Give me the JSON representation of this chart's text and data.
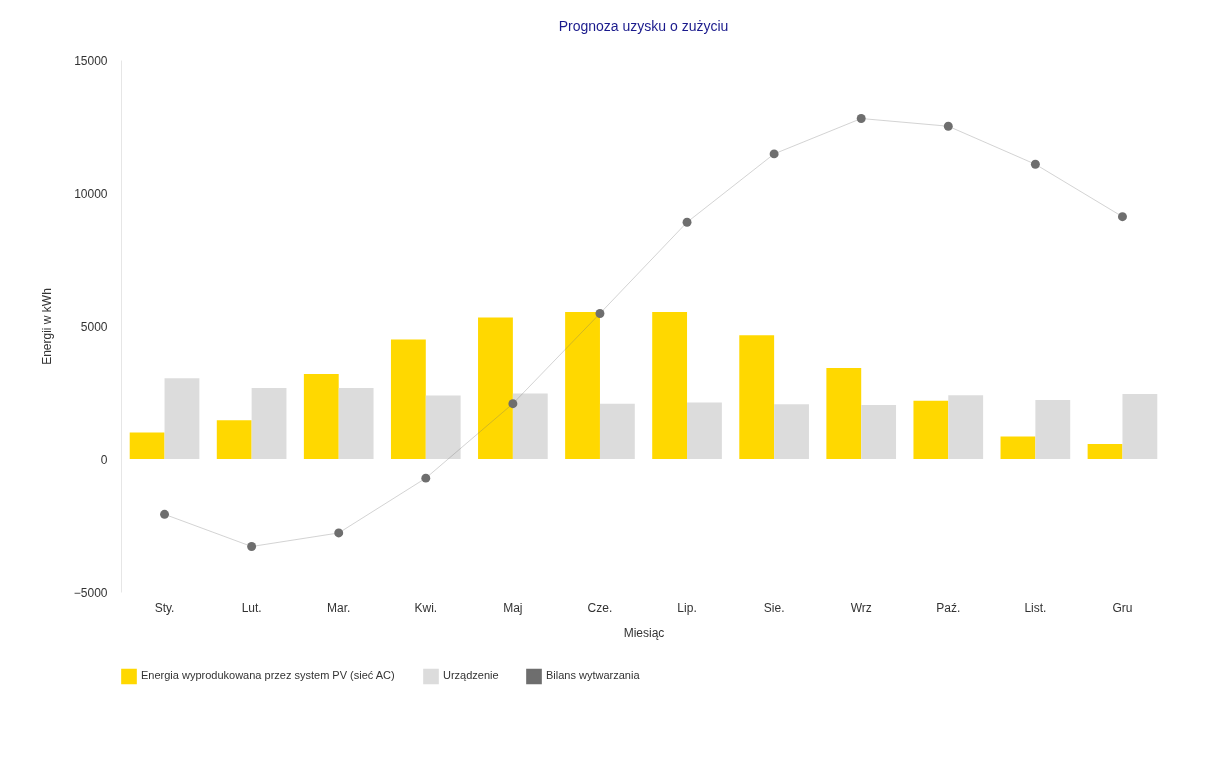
{
  "chart_data": {
    "type": "bar",
    "title": "Prognoza uzysku o zużyciu",
    "xlabel": "Miesiąc",
    "ylabel": "Energii w kWh",
    "categories": [
      "Sty.",
      "Lut.",
      "Mar.",
      "Kwi.",
      "Maj",
      "Cze.",
      "Lip.",
      "Sie.",
      "Wrz",
      "Paź.",
      "List.",
      "Gru"
    ],
    "series": [
      {
        "name": "Energia wyprodukowana przez system PV (sieć AC)",
        "color": "#ffd800",
        "values": [
          1000,
          1460,
          3200,
          4490,
          5320,
          5530,
          5530,
          4650,
          3420,
          2190,
          850,
          560
        ]
      },
      {
        "name": "Urządzenie",
        "color": "#dcdcdc",
        "values": [
          3040,
          2670,
          2670,
          2390,
          2460,
          2080,
          2120,
          2060,
          2030,
          2400,
          2220,
          2440
        ]
      },
      {
        "name": "Bilans wytwarzania",
        "type": "line",
        "color": "#6e6e6e",
        "marker": "circle",
        "values": [
          -2080,
          -3290,
          -2780,
          -720,
          2080,
          5470,
          8900,
          11470,
          12800,
          12510,
          11080,
          9110
        ]
      }
    ],
    "ylim": [
      -5000,
      15000
    ],
    "yticks": [
      -5000,
      0,
      5000,
      10000,
      15000
    ],
    "grid": false,
    "legend": "bottom"
  }
}
